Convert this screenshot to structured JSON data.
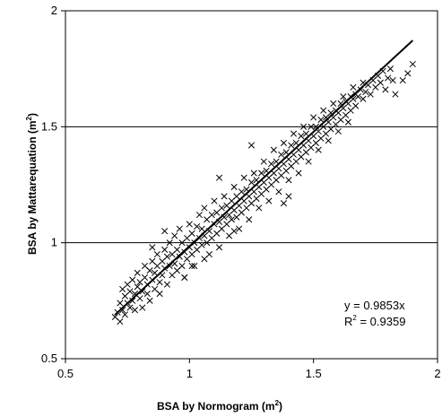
{
  "chart_data": {
    "type": "scatter",
    "xlabel": "BSA by Normogram",
    "xlabel_unit": "(m",
    "xlabel_sup": "2",
    "xlabel_close": ")",
    "ylabel": "BSA by Mattarequation",
    "ylabel_unit": "(m",
    "ylabel_sup": "2",
    "ylabel_close": ")",
    "xlim": [
      0.5,
      2
    ],
    "ylim": [
      0.5,
      2
    ],
    "x_ticks": [
      0.5,
      1,
      1.5,
      2
    ],
    "y_ticks": [
      0.5,
      1,
      1.5,
      2
    ],
    "x_tick_labels": [
      "0.5",
      "1",
      "1.5",
      "2"
    ],
    "y_tick_labels": [
      "0.5",
      "1",
      "1.5",
      "2"
    ],
    "horizontal_gridlines": [
      1,
      1.5
    ],
    "marker": "x",
    "trendline": {
      "slope": 0.9853,
      "intercept": 0,
      "x_range": [
        0.7,
        1.9
      ]
    },
    "equation_text": "y = 0.9853x",
    "r2_prefix": "R",
    "r2_sup": "2",
    "r2_value": " = 0.9359",
    "points": [
      [
        0.7,
        0.68
      ],
      [
        0.71,
        0.7
      ],
      [
        0.72,
        0.66
      ],
      [
        0.72,
        0.74
      ],
      [
        0.73,
        0.8
      ],
      [
        0.73,
        0.71
      ],
      [
        0.74,
        0.69
      ],
      [
        0.74,
        0.77
      ],
      [
        0.75,
        0.74
      ],
      [
        0.75,
        0.82
      ],
      [
        0.76,
        0.72
      ],
      [
        0.76,
        0.79
      ],
      [
        0.77,
        0.75
      ],
      [
        0.77,
        0.84
      ],
      [
        0.78,
        0.71
      ],
      [
        0.78,
        0.78
      ],
      [
        0.79,
        0.81
      ],
      [
        0.79,
        0.87
      ],
      [
        0.8,
        0.76
      ],
      [
        0.8,
        0.83
      ],
      [
        0.81,
        0.79
      ],
      [
        0.81,
        0.72
      ],
      [
        0.82,
        0.85
      ],
      [
        0.82,
        0.9
      ],
      [
        0.83,
        0.78
      ],
      [
        0.83,
        0.82
      ],
      [
        0.84,
        0.88
      ],
      [
        0.84,
        0.75
      ],
      [
        0.85,
        0.84
      ],
      [
        0.85,
        0.92
      ],
      [
        0.86,
        0.8
      ],
      [
        0.86,
        0.87
      ],
      [
        0.87,
        0.9
      ],
      [
        0.87,
        0.95
      ],
      [
        0.88,
        0.83
      ],
      [
        0.88,
        0.78
      ],
      [
        0.89,
        0.92
      ],
      [
        0.89,
        0.86
      ],
      [
        0.9,
        0.89
      ],
      [
        0.9,
        0.97
      ],
      [
        0.91,
        0.82
      ],
      [
        0.91,
        0.94
      ],
      [
        0.92,
        0.9
      ],
      [
        0.92,
        1.0
      ],
      [
        0.93,
        0.86
      ],
      [
        0.93,
        0.95
      ],
      [
        0.94,
        0.91
      ],
      [
        0.94,
        1.03
      ],
      [
        0.95,
        0.88
      ],
      [
        0.95,
        0.97
      ],
      [
        0.96,
        0.94
      ],
      [
        0.96,
        1.06
      ],
      [
        0.97,
        0.9
      ],
      [
        0.97,
        1.0
      ],
      [
        0.98,
        0.96
      ],
      [
        0.98,
        0.85
      ],
      [
        0.99,
        1.02
      ],
      [
        0.99,
        0.93
      ],
      [
        1.0,
        0.98
      ],
      [
        1.0,
        1.08
      ],
      [
        1.01,
        0.95
      ],
      [
        1.01,
        1.04
      ],
      [
        1.02,
        1.0
      ],
      [
        1.02,
        0.9
      ],
      [
        1.03,
        1.07
      ],
      [
        1.03,
        0.97
      ],
      [
        1.04,
        1.02
      ],
      [
        1.04,
        1.12
      ],
      [
        1.05,
        0.99
      ],
      [
        1.05,
        1.06
      ],
      [
        1.06,
        1.03
      ],
      [
        1.06,
        1.15
      ],
      [
        1.07,
        1.0
      ],
      [
        1.07,
        1.1
      ],
      [
        1.08,
        1.05
      ],
      [
        1.08,
        0.95
      ],
      [
        1.09,
        1.12
      ],
      [
        1.09,
        1.02
      ],
      [
        1.1,
        1.08
      ],
      [
        1.1,
        1.18
      ],
      [
        1.11,
        1.04
      ],
      [
        1.11,
        1.13
      ],
      [
        1.12,
        1.09
      ],
      [
        1.12,
        0.98
      ],
      [
        1.13,
        1.15
      ],
      [
        1.13,
        1.06
      ],
      [
        1.14,
        1.11
      ],
      [
        1.14,
        1.2
      ],
      [
        1.15,
        1.08
      ],
      [
        1.15,
        1.16
      ],
      [
        1.16,
        1.12
      ],
      [
        1.16,
        1.03
      ],
      [
        1.17,
        1.18
      ],
      [
        1.17,
        1.1
      ],
      [
        1.18,
        1.14
      ],
      [
        1.18,
        1.24
      ],
      [
        1.19,
        1.11
      ],
      [
        1.19,
        1.2
      ],
      [
        1.2,
        1.16
      ],
      [
        1.2,
        1.06
      ],
      [
        1.21,
        1.22
      ],
      [
        1.21,
        1.13
      ],
      [
        1.22,
        1.18
      ],
      [
        1.22,
        1.28
      ],
      [
        1.23,
        1.15
      ],
      [
        1.23,
        1.23
      ],
      [
        1.24,
        1.2
      ],
      [
        1.24,
        1.1
      ],
      [
        1.25,
        1.26
      ],
      [
        1.25,
        1.17
      ],
      [
        1.26,
        1.22
      ],
      [
        1.26,
        1.3
      ],
      [
        1.27,
        1.19
      ],
      [
        1.27,
        1.27
      ],
      [
        1.28,
        1.24
      ],
      [
        1.28,
        1.15
      ],
      [
        1.29,
        1.3
      ],
      [
        1.29,
        1.21
      ],
      [
        1.3,
        1.26
      ],
      [
        1.3,
        1.35
      ],
      [
        1.31,
        1.23
      ],
      [
        1.31,
        1.31
      ],
      [
        1.32,
        1.28
      ],
      [
        1.32,
        1.18
      ],
      [
        1.33,
        1.34
      ],
      [
        1.33,
        1.25
      ],
      [
        1.34,
        1.3
      ],
      [
        1.34,
        1.4
      ],
      [
        1.35,
        1.27
      ],
      [
        1.35,
        1.35
      ],
      [
        1.36,
        1.32
      ],
      [
        1.36,
        1.22
      ],
      [
        1.37,
        1.38
      ],
      [
        1.37,
        1.29
      ],
      [
        1.38,
        1.34
      ],
      [
        1.38,
        1.43
      ],
      [
        1.39,
        1.31
      ],
      [
        1.39,
        1.39
      ],
      [
        1.4,
        1.36
      ],
      [
        1.4,
        1.27
      ],
      [
        1.41,
        1.42
      ],
      [
        1.41,
        1.33
      ],
      [
        1.42,
        1.38
      ],
      [
        1.42,
        1.47
      ],
      [
        1.43,
        1.35
      ],
      [
        1.43,
        1.43
      ],
      [
        1.44,
        1.4
      ],
      [
        1.44,
        1.3
      ],
      [
        1.45,
        1.46
      ],
      [
        1.45,
        1.37
      ],
      [
        1.46,
        1.42
      ],
      [
        1.46,
        1.5
      ],
      [
        1.47,
        1.39
      ],
      [
        1.47,
        1.47
      ],
      [
        1.48,
        1.44
      ],
      [
        1.48,
        1.35
      ],
      [
        1.49,
        1.5
      ],
      [
        1.49,
        1.41
      ],
      [
        1.5,
        1.46
      ],
      [
        1.5,
        1.54
      ],
      [
        1.51,
        1.43
      ],
      [
        1.51,
        1.5
      ],
      [
        1.52,
        1.48
      ],
      [
        1.52,
        1.4
      ],
      [
        1.53,
        1.53
      ],
      [
        1.53,
        1.45
      ],
      [
        1.54,
        1.5
      ],
      [
        1.54,
        1.57
      ],
      [
        1.55,
        1.47
      ],
      [
        1.55,
        1.54
      ],
      [
        1.56,
        1.52
      ],
      [
        1.56,
        1.44
      ],
      [
        1.57,
        1.56
      ],
      [
        1.57,
        1.49
      ],
      [
        1.58,
        1.54
      ],
      [
        1.58,
        1.6
      ],
      [
        1.59,
        1.51
      ],
      [
        1.59,
        1.57
      ],
      [
        1.6,
        1.56
      ],
      [
        1.6,
        1.48
      ],
      [
        1.61,
        1.6
      ],
      [
        1.61,
        1.53
      ],
      [
        1.62,
        1.58
      ],
      [
        1.62,
        1.63
      ],
      [
        1.63,
        1.55
      ],
      [
        1.63,
        1.61
      ],
      [
        1.64,
        1.6
      ],
      [
        1.64,
        1.52
      ],
      [
        1.65,
        1.63
      ],
      [
        1.65,
        1.57
      ],
      [
        1.66,
        1.62
      ],
      [
        1.66,
        1.67
      ],
      [
        1.67,
        1.59
      ],
      [
        1.67,
        1.64
      ],
      [
        1.68,
        1.63
      ],
      [
        1.69,
        1.66
      ],
      [
        1.7,
        1.62
      ],
      [
        1.7,
        1.69
      ],
      [
        1.71,
        1.65
      ],
      [
        1.72,
        1.68
      ],
      [
        1.73,
        1.64
      ],
      [
        1.74,
        1.7
      ],
      [
        1.75,
        1.67
      ],
      [
        1.76,
        1.72
      ],
      [
        1.77,
        1.69
      ],
      [
        1.78,
        1.74
      ],
      [
        1.79,
        1.66
      ],
      [
        1.8,
        1.71
      ],
      [
        1.81,
        1.75
      ],
      [
        1.82,
        1.7
      ],
      [
        1.83,
        1.64
      ],
      [
        1.86,
        1.7
      ],
      [
        1.88,
        1.73
      ],
      [
        1.9,
        1.77
      ],
      [
        1.4,
        1.2
      ],
      [
        1.38,
        1.17
      ],
      [
        0.98,
        0.85
      ],
      [
        1.06,
        0.93
      ],
      [
        1.12,
        1.28
      ],
      [
        0.85,
        0.98
      ],
      [
        1.25,
        1.42
      ],
      [
        0.9,
        1.05
      ],
      [
        1.01,
        0.9
      ],
      [
        1.18,
        1.05
      ]
    ]
  }
}
